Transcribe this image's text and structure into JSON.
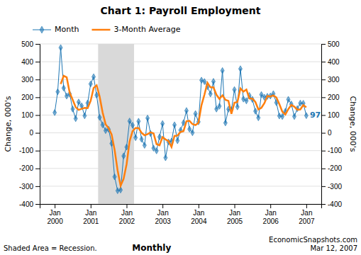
{
  "chart_data": {
    "type": "line",
    "title": "Chart 1: Payroll Employment",
    "ylabel": "Change, 000's",
    "y2label": "Change, 000's",
    "ylim": [
      -400,
      500
    ],
    "yticks": [
      -400,
      -300,
      -200,
      -100,
      0,
      100,
      200,
      300,
      400,
      500
    ],
    "y2lim": [
      -400,
      500
    ],
    "y2ticks": [
      -400,
      -300,
      -200,
      -100,
      0,
      100,
      200,
      300,
      400,
      500
    ],
    "grid": true,
    "legend": "top-left",
    "categories": [
      "Jan 2000",
      null,
      null,
      null,
      null,
      null,
      null,
      null,
      null,
      null,
      null,
      null,
      "Jan 2001",
      null,
      null,
      null,
      null,
      null,
      null,
      null,
      null,
      null,
      null,
      null,
      "Jan 2002",
      null,
      null,
      null,
      null,
      null,
      null,
      null,
      null,
      null,
      null,
      null,
      "Jan 2003",
      null,
      null,
      null,
      null,
      null,
      null,
      null,
      null,
      null,
      null,
      null,
      "Jan 2004",
      null,
      null,
      null,
      null,
      null,
      null,
      null,
      null,
      null,
      null,
      null,
      "Jan 2005",
      null,
      null,
      null,
      null,
      null,
      null,
      null,
      null,
      null,
      null,
      null,
      "Jan 2006",
      null,
      null,
      null,
      null,
      null,
      null,
      null,
      null,
      null,
      null,
      null,
      "Jan 2007"
    ],
    "series": [
      {
        "name": "Month",
        "marker": "diamond",
        "values": [
          114,
          231,
          479,
          252,
          207,
          219,
          134,
          80,
          173,
          152,
          96,
          168,
          275,
          315,
          212,
          87,
          45,
          13,
          20,
          -60,
          -247,
          -325,
          -321,
          -130,
          -80,
          66,
          43,
          -27,
          65,
          -36,
          -70,
          83,
          -4,
          -86,
          -101,
          -23,
          52,
          -140,
          -51,
          -47,
          45,
          -44,
          15,
          57,
          125,
          21,
          1,
          108,
          62,
          296,
          288,
          260,
          219,
          289,
          134,
          150,
          350,
          56,
          133,
          131,
          243,
          146,
          360,
          190,
          180,
          210,
          188,
          122,
          85,
          215,
          200,
          205,
          207,
          220,
          170,
          95,
          92,
          121,
          188,
          162,
          92,
          136,
          167,
          166,
          97
        ]
      },
      {
        "name": "3-Month Average",
        "values": [
          null,
          null,
          274.6666666666667,
          320.6666666666667,
          312.6666666666667,
          226.0,
          186.66666666666666,
          144.33333333333334,
          129.0,
          135.0,
          140.33333333333334,
          138.66666666666666,
          179.66666666666666,
          252.66666666666666,
          267.3333333333333,
          204.66666666666666,
          114.66666666666667,
          48.333333333333336,
          26.0,
          -9.0,
          -95.66666666666667,
          -210.66666666666666,
          -297.6666666666667,
          -258.6666666666667,
          -177.0,
          -48.0,
          9.666666666666666,
          27.333333333333332,
          27.0,
          0.6666666666666666,
          -13.666666666666666,
          -7.666666666666667,
          3.0,
          -2.3333333333333335,
          -63.666666666666664,
          -70.0,
          -24.0,
          -37.0,
          -46.333333333333336,
          -79.33333333333333,
          -17.666666666666668,
          -15.333333333333334,
          5.333333333333333,
          9.333333333333334,
          65.66666666666667,
          67.66666666666667,
          49.0,
          43.333333333333336,
          57.0,
          155.33333333333334,
          215.33333333333334,
          281.3333333333333,
          255.66666666666666,
          256.0,
          214.0,
          191.0,
          211.33333333333334,
          185.33333333333334,
          179.66666666666666,
          106.66666666666667,
          169.0,
          173.33333333333334,
          249.66666666666666,
          232.0,
          243.33333333333334,
          193.33333333333334,
          192.66666666666666,
          173.33333333333334,
          131.66666666666666,
          140.66666666666666,
          166.66666666666666,
          206.66666666666666,
          204.0,
          210.66666666666666,
          199.0,
          161.66666666666666,
          119.0,
          102.66666666666667,
          133.66666666666666,
          157.0,
          147.33333333333334,
          130.0,
          131.66666666666666,
          156.33333333333334,
          143.33333333333334
        ]
      }
    ],
    "shaded_span": {
      "start": 15,
      "end": 26
    },
    "annotations": [
      {
        "text": "97",
        "x": 84,
        "y": 97
      }
    ],
    "notes": [
      "Shaded Area = Recession.",
      "Monthly",
      "EconomicSnapshots.com\nMar 12, 2007"
    ]
  }
}
